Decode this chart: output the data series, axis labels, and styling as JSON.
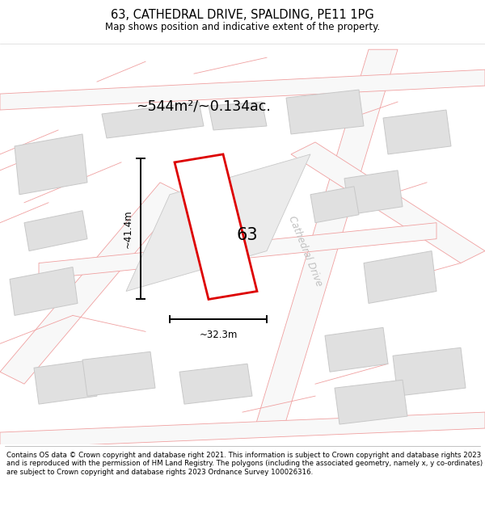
{
  "title": "63, CATHEDRAL DRIVE, SPALDING, PE11 1PG",
  "subtitle": "Map shows position and indicative extent of the property.",
  "footer": "Contains OS data © Crown copyright and database right 2021. This information is subject to Crown copyright and database rights 2023 and is reproduced with the permission of HM Land Registry. The polygons (including the associated geometry, namely x, y co-ordinates) are subject to Crown copyright and database rights 2023 Ordnance Survey 100026316.",
  "area_label": "~544m²/~0.134ac.",
  "width_label": "~32.3m",
  "height_label": "~41.4m",
  "plot_number": "63",
  "background_color": "#ffffff",
  "road_name": "Cathedral Drive",
  "main_plot_edge": "#dd0000",
  "dim_color": "#000000",
  "building_fill": "#e0e0e0",
  "building_edge": "#c8c8c8",
  "pink_line_color": "#f0a0a0",
  "road_fill": "#f8f8f8"
}
